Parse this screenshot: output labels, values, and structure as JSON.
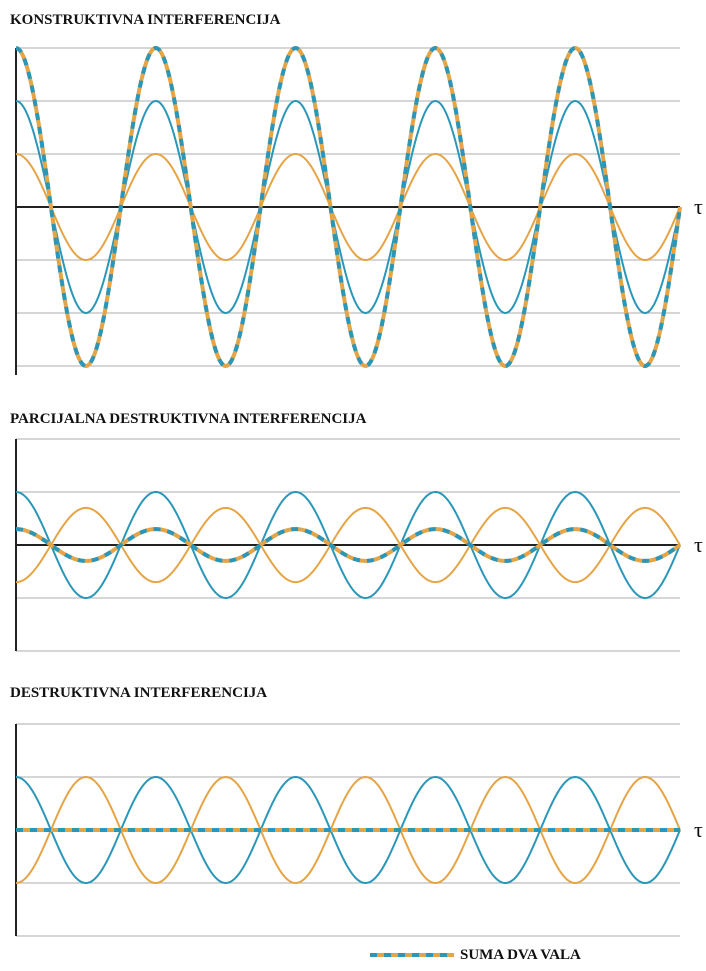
{
  "colors": {
    "wave_a": "#e5a445",
    "wave_b": "#2b97b8",
    "sum_a": "#e5a445",
    "sum_b": "#2b97b8",
    "axis": "#222222",
    "grid": "#bdbdbd"
  },
  "legend": {
    "label": "SUMA DVA VALA"
  },
  "chart_data": [
    {
      "type": "line",
      "title": "KONSTRUKTIVNA INTERFERENCIJA",
      "xlabel": "τ",
      "ylabel": "",
      "x_range": [
        0,
        4.75
      ],
      "ylim": [
        -3,
        3
      ],
      "grid": true,
      "gridlines": [
        -3,
        -2,
        -1,
        1,
        2,
        3
      ],
      "cycles": 4.75,
      "series": [
        {
          "role": "wave_a",
          "amplitude": 1,
          "phase_deg": 90,
          "style": "solid"
        },
        {
          "role": "wave_b",
          "amplitude": 2,
          "phase_deg": 90,
          "style": "solid"
        },
        {
          "role": "sum",
          "amplitude": 3,
          "phase_deg": 90,
          "style": "dashed"
        }
      ]
    },
    {
      "type": "line",
      "title": "PARCIJALNA DESTRUKTIVNA INTERFERENCIJA",
      "xlabel": "τ",
      "ylabel": "",
      "x_range": [
        0,
        4.75
      ],
      "ylim": [
        -2,
        2
      ],
      "grid": true,
      "gridlines": [
        -2,
        -1,
        1,
        2
      ],
      "cycles": 4.75,
      "series": [
        {
          "role": "wave_a",
          "amplitude": 0.7,
          "phase_deg": 270,
          "style": "solid"
        },
        {
          "role": "wave_b",
          "amplitude": 1,
          "phase_deg": 90,
          "style": "solid"
        },
        {
          "role": "sum",
          "amplitude": 0.3,
          "phase_deg": 90,
          "style": "dashed"
        }
      ]
    },
    {
      "type": "line",
      "title": "DESTRUKTIVNA INTERFERENCIJA",
      "xlabel": "τ",
      "ylabel": "",
      "x_range": [
        0,
        4.75
      ],
      "ylim": [
        -2,
        2
      ],
      "grid": true,
      "gridlines": [
        -2,
        -1,
        1,
        2
      ],
      "cycles": 4.75,
      "series": [
        {
          "role": "wave_a",
          "amplitude": 1,
          "phase_deg": 270,
          "style": "solid"
        },
        {
          "role": "wave_b",
          "amplitude": 1,
          "phase_deg": 90,
          "style": "solid"
        },
        {
          "role": "sum",
          "amplitude": 0,
          "phase_deg": 90,
          "style": "dashed"
        }
      ]
    }
  ]
}
